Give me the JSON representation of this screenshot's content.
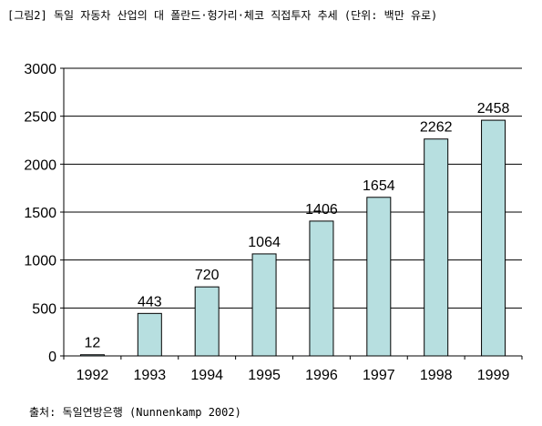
{
  "caption": "[그림2] 독일 자동차 산업의 대 폴란드·헝가리·체코 직접투자 추세  (단위: 백만 유로)",
  "source": "출처: 독일연방은행 (Nunnenkamp 2002)",
  "chart_data": {
    "type": "bar",
    "categories": [
      "1992",
      "1993",
      "1994",
      "1995",
      "1996",
      "1997",
      "1998",
      "1999"
    ],
    "values": [
      12,
      443,
      720,
      1064,
      1406,
      1654,
      2262,
      2458
    ],
    "ylim": [
      0,
      3000
    ],
    "yticks": [
      0,
      500,
      1000,
      1500,
      2000,
      2500,
      3000
    ],
    "grid": true,
    "bar_color": "#b7dfe0"
  }
}
